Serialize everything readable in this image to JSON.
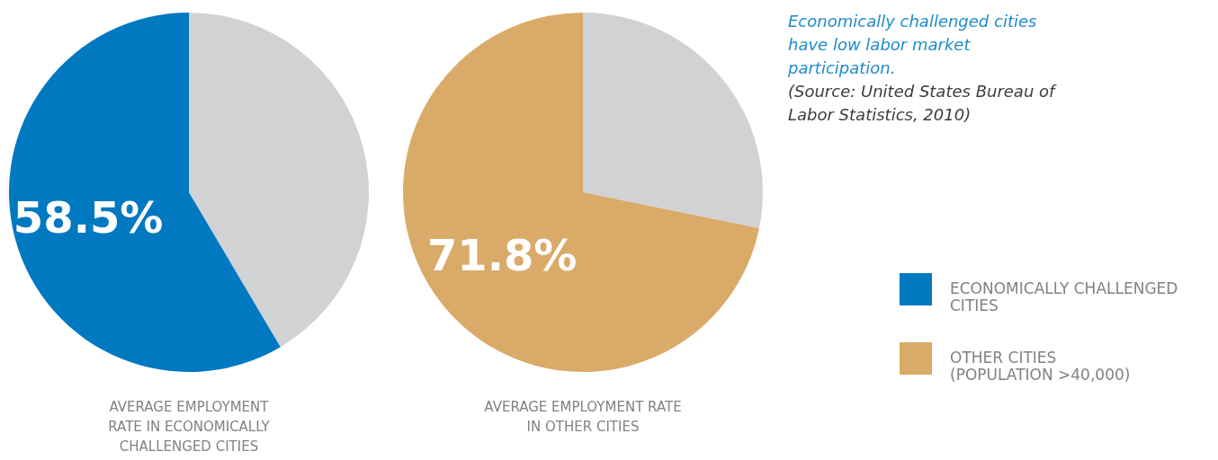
{
  "chart_data": [
    {
      "type": "pie",
      "title": "AVERAGE EMPLOYMENT RATE IN ECONOMICALLY CHALLENGED CITIES",
      "categories": [
        null,
        "ECONOMICALLY CHALLENGED CITIES"
      ],
      "values": [
        41.5,
        58.5
      ],
      "colors": [
        "#d1d2d4",
        "#0079c1"
      ],
      "value_labels": [
        null,
        "58.5%"
      ],
      "legend": "right"
    },
    {
      "type": "pie",
      "title": "AVERAGE EMPLOYMENT RATE IN OTHER CITIES",
      "categories": [
        null,
        "OTHER CITIES (POPULATION >40,000)"
      ],
      "values": [
        28.2,
        71.8
      ],
      "colors": [
        "#d1d2d4",
        "#d9aa68"
      ],
      "value_labels": [
        null,
        "71.8%"
      ],
      "legend": "right",
      "annotations": [
        "Economically challenged cities have low labor market participation.",
        "(Source: United States Bureau of Labor Statistics, 2010)"
      ]
    }
  ]
}
